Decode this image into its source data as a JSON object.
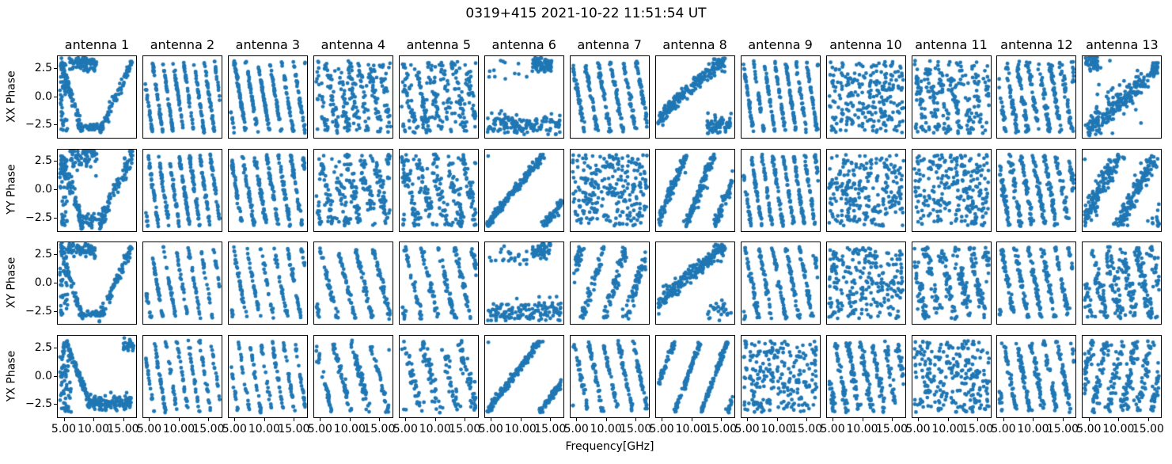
{
  "figure": {
    "title": "0319+415 2021-10-22 11:51:54 UT",
    "xlabel": "Frequency[GHz]",
    "background": "#ffffff",
    "text_color": "#000000",
    "marker_color": "#1f77b4"
  },
  "chart_data": {
    "type": "scatter",
    "description": "Grid of phase-vs-frequency scatter subplots, 4 correlation products x 13 antennas",
    "grid": {
      "nrows": 4,
      "ncols": 13
    },
    "title": "0319+415 2021-10-22 11:51:54 UT",
    "xlabel": "Frequency[GHz]",
    "row_labels": [
      "XX Phase",
      "YY Phase",
      "XY Phase",
      "YX Phase"
    ],
    "col_titles": [
      "antenna 1",
      "antenna 2",
      "antenna 3",
      "antenna 4",
      "antenna 5",
      "antenna 6",
      "antenna 7",
      "antenna 8",
      "antenna 9",
      "antenna 10",
      "antenna 11",
      "antenna 12",
      "antenna 13"
    ],
    "xlim": [
      4.0,
      17.2
    ],
    "ylim": [
      -3.6,
      3.6
    ],
    "x_ticks": [
      5.0,
      10.0,
      15.0
    ],
    "x_tick_labels": [
      "5.00",
      "10.00",
      "15.00"
    ],
    "y_ticks": [
      2.5,
      0.0,
      -2.5
    ],
    "y_tick_labels": [
      "2.5",
      "0.0",
      "−2.5"
    ],
    "ticks_only_on_outer": true,
    "grid_lines": false,
    "legend": null,
    "marker_color": "#1f77b4",
    "point_radius_px": 2.4,
    "subplots": [
      {
        "r": 0,
        "c": 0,
        "p": "vshape",
        "n": 320,
        "seed": 101
      },
      {
        "r": 0,
        "c": 1,
        "p": "stripes",
        "n": 300,
        "seed": 102,
        "cycles": 7.2,
        "dir": -1,
        "noise": 0.18
      },
      {
        "r": 0,
        "c": 2,
        "p": "stripes",
        "n": 300,
        "seed": 103,
        "cycles": 6.3,
        "dir": -1,
        "noise": 0.2
      },
      {
        "r": 0,
        "c": 3,
        "p": "stripes",
        "n": 260,
        "seed": 104,
        "cycles": 7.0,
        "dir": -1,
        "noise": 1.0
      },
      {
        "r": 0,
        "c": 4,
        "p": "stripes",
        "n": 260,
        "seed": 105,
        "cycles": 6.0,
        "dir": -1,
        "noise": 1.1
      },
      {
        "r": 0,
        "c": 5,
        "p": "floor_tr",
        "n": 230,
        "seed": 106
      },
      {
        "r": 0,
        "c": 6,
        "p": "stripes",
        "n": 280,
        "seed": 107,
        "cycles": 5.8,
        "dir": -1,
        "noise": 0.35
      },
      {
        "r": 0,
        "c": 7,
        "p": "arc_wrap",
        "n": 270,
        "seed": 108,
        "wrap": 0.22
      },
      {
        "r": 0,
        "c": 8,
        "p": "stripes",
        "n": 300,
        "seed": 109,
        "cycles": 7.0,
        "dir": -1,
        "noise": 0.22
      },
      {
        "r": 0,
        "c": 9,
        "p": "scatter",
        "n": 250,
        "seed": 110
      },
      {
        "r": 0,
        "c": 10,
        "p": "stripes",
        "n": 260,
        "seed": 111,
        "cycles": 6.5,
        "dir": -1,
        "noise": 1.2
      },
      {
        "r": 0,
        "c": 11,
        "p": "stripes",
        "n": 300,
        "seed": 112,
        "cycles": 6.8,
        "dir": -1,
        "noise": 0.5
      },
      {
        "r": 0,
        "c": 12,
        "p": "diag_tl",
        "n": 280,
        "seed": 113
      },
      {
        "r": 1,
        "c": 0,
        "p": "vshape",
        "n": 330,
        "seed": 114,
        "noise": 0.4
      },
      {
        "r": 1,
        "c": 1,
        "p": "stripes",
        "n": 300,
        "seed": 115,
        "cycles": 7.2,
        "dir": -1,
        "noise": 0.25
      },
      {
        "r": 1,
        "c": 2,
        "p": "stripes",
        "n": 300,
        "seed": 116,
        "cycles": 6.2,
        "dir": -1,
        "noise": 0.3
      },
      {
        "r": 1,
        "c": 3,
        "p": "stripes",
        "n": 260,
        "seed": 117,
        "cycles": 5.5,
        "dir": -1,
        "noise": 1.0
      },
      {
        "r": 1,
        "c": 4,
        "p": "stripes",
        "n": 260,
        "seed": 118,
        "cycles": 5.0,
        "dir": -1,
        "noise": 1.0
      },
      {
        "r": 1,
        "c": 5,
        "p": "stripes",
        "n": 270,
        "seed": 119,
        "cycles": 1.3,
        "dir": 1,
        "noise": 0.22,
        "p0": -3.0
      },
      {
        "r": 1,
        "c": 6,
        "p": "scatter",
        "n": 270,
        "seed": 120
      },
      {
        "r": 1,
        "c": 7,
        "p": "stripes",
        "n": 270,
        "seed": 121,
        "cycles": 2.6,
        "dir": 1,
        "noise": 0.4
      },
      {
        "r": 1,
        "c": 8,
        "p": "stripes",
        "n": 300,
        "seed": 122,
        "cycles": 7.0,
        "dir": -1,
        "noise": 0.25
      },
      {
        "r": 1,
        "c": 9,
        "p": "scatter",
        "n": 250,
        "seed": 123
      },
      {
        "r": 1,
        "c": 10,
        "p": "scatter",
        "n": 250,
        "seed": 124
      },
      {
        "r": 1,
        "c": 11,
        "p": "stripes",
        "n": 290,
        "seed": 125,
        "cycles": 6.3,
        "dir": -1,
        "noise": 0.5
      },
      {
        "r": 1,
        "c": 12,
        "p": "stripes",
        "n": 300,
        "seed": 126,
        "cycles": 2.0,
        "dir": 1,
        "noise": 0.65,
        "p0": -2.5
      },
      {
        "r": 2,
        "c": 0,
        "p": "vshape",
        "n": 300,
        "seed": 127
      },
      {
        "r": 2,
        "c": 1,
        "p": "stripes",
        "n": 175,
        "seed": 128,
        "cycles": 6.0,
        "dir": -1,
        "noise": 0.2
      },
      {
        "r": 2,
        "c": 2,
        "p": "stripes",
        "n": 170,
        "seed": 129,
        "cycles": 5.5,
        "dir": -1,
        "noise": 0.22
      },
      {
        "r": 2,
        "c": 3,
        "p": "stripes",
        "n": 180,
        "seed": 130,
        "cycles": 4.2,
        "dir": -1,
        "noise": 0.3
      },
      {
        "r": 2,
        "c": 4,
        "p": "stripes",
        "n": 190,
        "seed": 131,
        "cycles": 4.5,
        "dir": -1,
        "noise": 0.35
      },
      {
        "r": 2,
        "c": 5,
        "p": "floor_tr",
        "n": 210,
        "seed": 132
      },
      {
        "r": 2,
        "c": 6,
        "p": "stripes",
        "n": 200,
        "seed": 133,
        "cycles": 3.4,
        "dir": 1,
        "noise": 0.5
      },
      {
        "r": 2,
        "c": 7,
        "p": "arc_wrap",
        "n": 250,
        "seed": 134,
        "wrap": 0.12
      },
      {
        "r": 2,
        "c": 8,
        "p": "stripes",
        "n": 230,
        "seed": 135,
        "cycles": 5.5,
        "dir": -1,
        "noise": 0.3
      },
      {
        "r": 2,
        "c": 9,
        "p": "scatter",
        "n": 240,
        "seed": 136
      },
      {
        "r": 2,
        "c": 10,
        "p": "stripes",
        "n": 250,
        "seed": 137,
        "cycles": 5.0,
        "dir": -1,
        "noise": 0.8
      },
      {
        "r": 2,
        "c": 11,
        "p": "stripes",
        "n": 250,
        "seed": 138,
        "cycles": 5.5,
        "dir": -1,
        "noise": 0.35
      },
      {
        "r": 2,
        "c": 12,
        "p": "stripes",
        "n": 280,
        "seed": 139,
        "cycles": 5.0,
        "dir": -1,
        "noise": 1.0
      },
      {
        "r": 3,
        "c": 0,
        "p": "desc_floor",
        "n": 310,
        "seed": 140
      },
      {
        "r": 3,
        "c": 1,
        "p": "stripes",
        "n": 180,
        "seed": 141,
        "cycles": 6.6,
        "dir": -1,
        "noise": 0.22
      },
      {
        "r": 3,
        "c": 2,
        "p": "stripes",
        "n": 170,
        "seed": 142,
        "cycles": 6.6,
        "dir": -1,
        "noise": 0.25
      },
      {
        "r": 3,
        "c": 3,
        "p": "stripes",
        "n": 170,
        "seed": 143,
        "cycles": 4.0,
        "dir": -1,
        "noise": 0.4
      },
      {
        "r": 3,
        "c": 4,
        "p": "stripes",
        "n": 170,
        "seed": 144,
        "cycles": 4.0,
        "dir": -1,
        "noise": 0.7
      },
      {
        "r": 3,
        "c": 5,
        "p": "stripes",
        "n": 260,
        "seed": 145,
        "cycles": 1.4,
        "dir": 1,
        "noise": 0.2,
        "p0": -3.1
      },
      {
        "r": 3,
        "c": 6,
        "p": "stripes",
        "n": 210,
        "seed": 146,
        "cycles": 5.0,
        "dir": -1,
        "noise": 0.3
      },
      {
        "r": 3,
        "c": 7,
        "p": "stripes",
        "n": 250,
        "seed": 147,
        "cycles": 2.8,
        "dir": 1,
        "noise": 0.22
      },
      {
        "r": 3,
        "c": 8,
        "p": "scatter",
        "n": 240,
        "seed": 148
      },
      {
        "r": 3,
        "c": 9,
        "p": "stripes",
        "n": 260,
        "seed": 149,
        "cycles": 6.0,
        "dir": -1,
        "noise": 0.6
      },
      {
        "r": 3,
        "c": 10,
        "p": "scatter",
        "n": 250,
        "seed": 150
      },
      {
        "r": 3,
        "c": 11,
        "p": "stripes",
        "n": 250,
        "seed": 151,
        "cycles": 5.5,
        "dir": -1,
        "noise": 0.4
      },
      {
        "r": 3,
        "c": 12,
        "p": "stripes",
        "n": 280,
        "seed": 152,
        "cycles": 5.0,
        "dir": 1,
        "noise": 1.0
      }
    ]
  }
}
